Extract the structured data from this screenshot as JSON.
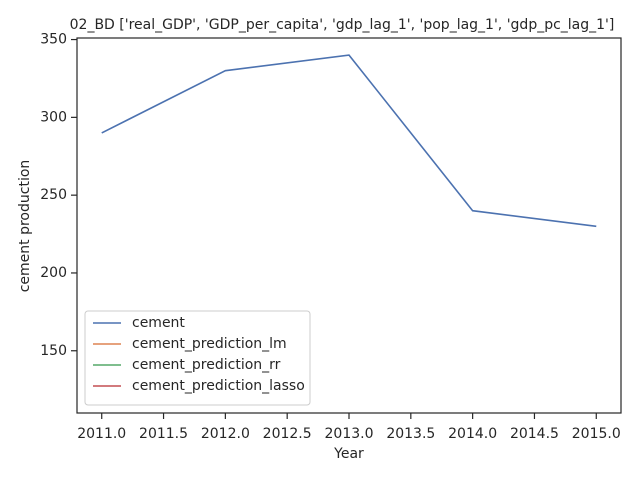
{
  "chart_data": {
    "type": "line",
    "title": "02_BD ['real_GDP', 'GDP_per_capita', 'gdp_lag_1', 'pop_lag_1', 'gdp_pc_lag_1']",
    "xlabel": "Year",
    "ylabel": "cement production",
    "x": [
      2011,
      2012,
      2013,
      2014,
      2015
    ],
    "series": [
      {
        "name": "cement",
        "color": "#4c72b0",
        "values": [
          290,
          330,
          340,
          240,
          230
        ]
      },
      {
        "name": "cement_prediction_lm",
        "color": "#dd8452",
        "values": [
          null,
          null,
          null,
          null,
          null
        ]
      },
      {
        "name": "cement_prediction_rr",
        "color": "#55a868",
        "values": [
          null,
          null,
          null,
          null,
          null
        ]
      },
      {
        "name": "cement_prediction_lasso",
        "color": "#c44e52",
        "values": [
          null,
          null,
          null,
          null,
          null
        ]
      }
    ],
    "xlim": [
      2010.8,
      2015.2
    ],
    "xticks": [
      {
        "value": 2011,
        "label": "2011.0"
      },
      2011.5,
      {
        "value": 2012,
        "label": "2012.0"
      },
      2012.5,
      {
        "value": 2013,
        "label": "2013.0"
      },
      2013.5,
      {
        "value": 2014,
        "label": "2014.0"
      },
      2014.5,
      {
        "value": 2015,
        "label": "2015.0"
      }
    ],
    "ylim": [
      110,
      351
    ],
    "yticks": [
      150,
      200,
      250,
      300,
      350
    ],
    "grid": false,
    "legend": "lower left"
  }
}
